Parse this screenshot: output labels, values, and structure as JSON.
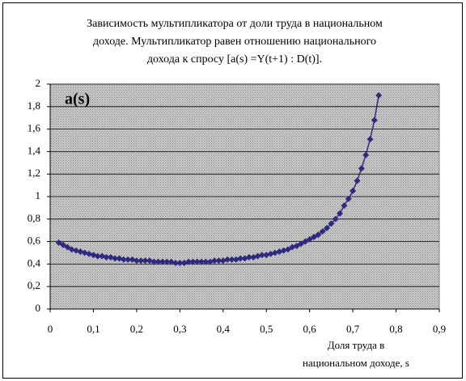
{
  "chart_data": {
    "type": "scatter",
    "title": [
      "Зависимость мультипликатора от доли труда в национальном",
      "доходе. Мультипликатор равен отношению национального",
      "дохода к спросу [a(s) =Y(t+1) : D(t)]."
    ],
    "annotation": "a(s)",
    "x_label": [
      "Доля труда в",
      "национальном доходе, s"
    ],
    "series": [
      {
        "name": "a(s)",
        "color": "#2e2a7e",
        "x": [
          0.02,
          0.03,
          0.04,
          0.05,
          0.06,
          0.07,
          0.08,
          0.09,
          0.1,
          0.11,
          0.12,
          0.13,
          0.14,
          0.15,
          0.16,
          0.17,
          0.18,
          0.19,
          0.2,
          0.21,
          0.22,
          0.23,
          0.24,
          0.25,
          0.26,
          0.27,
          0.28,
          0.29,
          0.3,
          0.31,
          0.32,
          0.33,
          0.34,
          0.35,
          0.36,
          0.37,
          0.38,
          0.39,
          0.4,
          0.41,
          0.42,
          0.43,
          0.44,
          0.45,
          0.46,
          0.47,
          0.48,
          0.49,
          0.5,
          0.51,
          0.52,
          0.53,
          0.54,
          0.55,
          0.56,
          0.57,
          0.58,
          0.59,
          0.6,
          0.61,
          0.62,
          0.63,
          0.64,
          0.65,
          0.66,
          0.67,
          0.68,
          0.69,
          0.7,
          0.71,
          0.72,
          0.73,
          0.74,
          0.75,
          0.76
        ],
        "values": [
          0.59,
          0.57,
          0.55,
          0.53,
          0.52,
          0.51,
          0.5,
          0.49,
          0.48,
          0.47,
          0.47,
          0.46,
          0.46,
          0.45,
          0.45,
          0.44,
          0.44,
          0.44,
          0.43,
          0.43,
          0.43,
          0.43,
          0.42,
          0.42,
          0.42,
          0.42,
          0.42,
          0.41,
          0.41,
          0.41,
          0.42,
          0.42,
          0.42,
          0.42,
          0.42,
          0.42,
          0.43,
          0.43,
          0.43,
          0.44,
          0.44,
          0.44,
          0.45,
          0.45,
          0.46,
          0.46,
          0.47,
          0.48,
          0.48,
          0.49,
          0.5,
          0.51,
          0.52,
          0.53,
          0.55,
          0.56,
          0.58,
          0.6,
          0.62,
          0.64,
          0.66,
          0.69,
          0.72,
          0.76,
          0.8,
          0.85,
          0.92,
          0.98,
          1.05,
          1.14,
          1.25,
          1.37,
          1.51,
          1.68,
          1.9
        ]
      }
    ],
    "xlim": [
      0,
      0.9
    ],
    "xticks": [
      0,
      {
        "value": 0.1,
        "label": "0,1"
      },
      {
        "value": 0.2,
        "label": "0,2"
      },
      {
        "value": 0.3,
        "label": "0,3"
      },
      {
        "value": 0.4,
        "label": "0,4"
      },
      {
        "value": 0.5,
        "label": "0,5"
      },
      {
        "value": 0.6,
        "label": "0,6"
      },
      {
        "value": 0.7,
        "label": "0,7"
      },
      {
        "value": 0.8,
        "label": "0,8"
      },
      {
        "value": 0.9,
        "label": "0,9"
      }
    ],
    "ylim": [
      0,
      2
    ],
    "yticks": [
      0,
      {
        "value": 0.2,
        "label": "0,2"
      },
      {
        "value": 0.4,
        "label": "0,4"
      },
      {
        "value": 0.6,
        "label": "0,6"
      },
      {
        "value": 0.8,
        "label": "0,8"
      },
      1,
      {
        "value": 1.2,
        "label": "1,2"
      },
      {
        "value": 1.4,
        "label": "1,4"
      },
      {
        "value": 1.6,
        "label": "1,6"
      },
      {
        "value": 1.8,
        "label": "1,8"
      },
      2
    ],
    "grid": true
  }
}
